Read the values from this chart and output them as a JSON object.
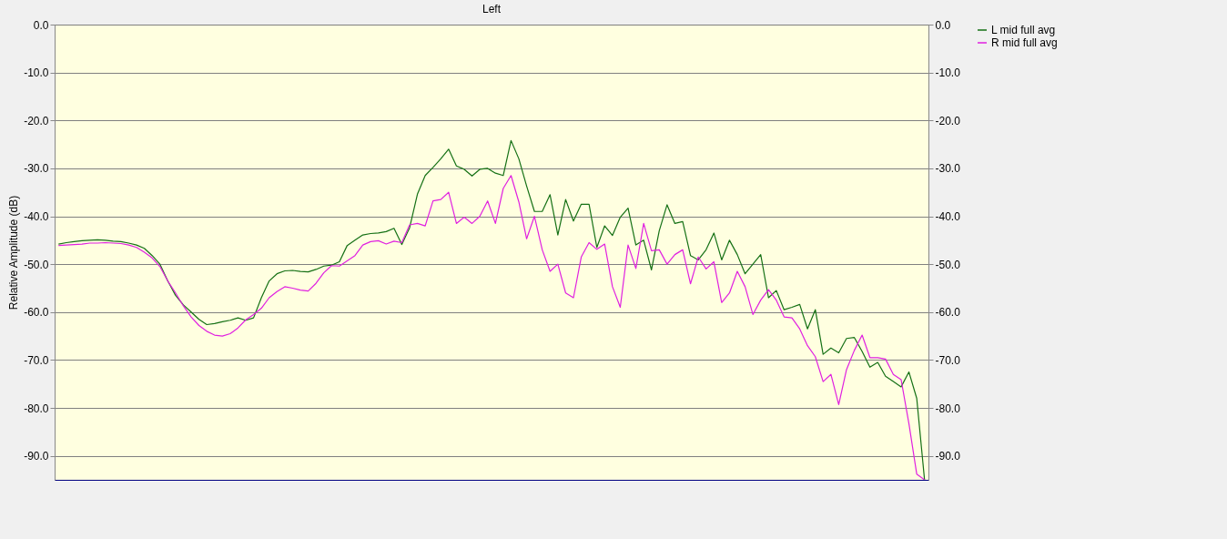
{
  "chart_data": {
    "type": "line",
    "title": "Left",
    "ylabel": "Relative Amplitude (dB)",
    "categories": [
      null,
      null,
      null,
      null,
      null,
      null,
      null,
      null,
      null,
      null,
      null,
      null,
      null,
      null,
      null,
      null,
      null,
      null,
      null,
      null,
      null,
      null,
      null,
      null,
      null,
      null,
      null,
      null,
      null,
      null,
      null,
      null,
      null,
      null,
      null,
      null,
      null,
      null,
      null,
      null,
      null,
      null,
      null,
      null,
      null,
      null,
      null,
      null,
      null,
      null,
      null,
      null,
      null,
      null,
      null,
      null,
      null,
      null,
      null,
      null,
      null,
      null,
      null,
      null,
      null,
      null,
      null,
      null,
      null,
      null,
      null,
      null,
      null,
      null,
      null,
      null,
      null,
      null,
      null,
      null,
      null,
      null,
      null,
      null,
      null,
      null,
      null,
      null,
      null,
      null,
      null,
      null,
      null,
      null,
      null,
      null,
      null,
      null,
      null,
      null,
      null,
      null,
      null,
      null,
      null,
      null,
      null,
      null,
      null,
      null,
      null,
      null
    ],
    "series": [
      {
        "name": "L mid full avg",
        "color": "#157015",
        "values": [
          -45.8,
          -45.5,
          -45.3,
          -45.1,
          -45,
          -44.9,
          -45,
          -45.2,
          -45.3,
          -45.6,
          -46,
          -46.7,
          -48.2,
          -50,
          -53.5,
          -56.5,
          -58.5,
          -60,
          -61.5,
          -62.6,
          -62.4,
          -62,
          -61.7,
          -61.2,
          -61.7,
          -61.2,
          -57,
          -53.5,
          -52,
          -51.4,
          -51.3,
          -51.5,
          -51.6,
          -51.1,
          -50.4,
          -50.2,
          -49.5,
          -46.1,
          -45,
          -43.9,
          -43.6,
          -43.5,
          -43.2,
          -42.5,
          -45.9,
          -42.4,
          -35.4,
          -31.5,
          -29.8,
          -28,
          -26,
          -29.5,
          -30.2,
          -31.6,
          -30.2,
          -30,
          -31,
          -31.5,
          -24.2,
          -28,
          -33.7,
          -39,
          -39,
          -35.5,
          -43.9,
          -36.5,
          -41,
          -37.5,
          -37.5,
          -46.5,
          -42,
          -44,
          -40.2,
          -38.3,
          -46,
          -45,
          -51.2,
          -43,
          -37.6,
          -41.5,
          -41.1,
          -48.2,
          -49.1,
          -47,
          -43.5,
          -49.1,
          -45,
          -48,
          -52,
          -50,
          -48,
          -57,
          -55.5,
          -59.5,
          -59,
          -58.4,
          -63.5,
          -59.5,
          -68.8,
          -67.5,
          -68.5,
          -65.5,
          -65.3,
          -68.2,
          -71.5,
          -70.5,
          -73.4,
          -74.5,
          -75.6,
          -72.5,
          -78,
          -95
        ]
      },
      {
        "name": "R mid full avg",
        "color": "#e020e0",
        "values": [
          -46.1,
          -46,
          -45.9,
          -45.8,
          -45.6,
          -45.6,
          -45.5,
          -45.6,
          -45.7,
          -46,
          -46.5,
          -47.5,
          -48.7,
          -50.5,
          -53.5,
          -56,
          -58.7,
          -61,
          -62.8,
          -64,
          -64.8,
          -65,
          -64.5,
          -63.3,
          -61.6,
          -60.5,
          -59.2,
          -57,
          -55.7,
          -54.7,
          -55,
          -55.4,
          -55.6,
          -54,
          -51.8,
          -50.3,
          -50.4,
          -49.3,
          -48.2,
          -46,
          -45.3,
          -45.1,
          -45.8,
          -45.2,
          -45.5,
          -41.8,
          -41.5,
          -42,
          -36.8,
          -36.5,
          -35,
          -41.5,
          -40.2,
          -41.5,
          -40,
          -36.8,
          -41.5,
          -34.2,
          -31.5,
          -37,
          -44.7,
          -40,
          -47,
          -51.5,
          -50,
          -56,
          -57,
          -48.5,
          -45.5,
          -46.9,
          -45.8,
          -54.7,
          -59,
          -46,
          -50.9,
          -41.5,
          -47.2,
          -47,
          -50,
          -48,
          -47,
          -54.1,
          -48.5,
          -51,
          -49.5,
          -58,
          -56,
          -51.5,
          -54.7,
          -60.5,
          -57.5,
          -55.3,
          -57.5,
          -61,
          -61.2,
          -63.5,
          -67,
          -69.3,
          -74.5,
          -73,
          -79.3,
          -72,
          -68,
          -64.8,
          -69.5,
          -69.5,
          -69.8,
          -73,
          -74.1,
          -83.3,
          -93.8,
          -95
        ]
      }
    ],
    "ylim": [
      -95,
      0
    ],
    "yticks": [
      {
        "value": 0,
        "label": "0.0"
      },
      {
        "value": -10,
        "label": "-10.0"
      },
      {
        "value": -20,
        "label": "-20.0"
      },
      {
        "value": -30,
        "label": "-30.0"
      },
      {
        "value": -40,
        "label": "-40.0"
      },
      {
        "value": -50,
        "label": "-50.0"
      },
      {
        "value": -60,
        "label": "-60.0"
      },
      {
        "value": -70,
        "label": "-70.0"
      },
      {
        "value": -80,
        "label": "-80.0"
      },
      {
        "value": -90,
        "label": "-90.0"
      }
    ],
    "y2lim": [
      -95,
      0
    ],
    "y2ticks": [
      {
        "value": 0,
        "label": "0.0"
      },
      {
        "value": -10,
        "label": "-10.0"
      },
      {
        "value": -20,
        "label": "-20.0"
      },
      {
        "value": -30,
        "label": "-30.0"
      },
      {
        "value": -40,
        "label": "-40.0"
      },
      {
        "value": -50,
        "label": "-50.0"
      },
      {
        "value": -60,
        "label": "-60.0"
      },
      {
        "value": -70,
        "label": "-70.0"
      },
      {
        "value": -80,
        "label": "-80.0"
      },
      {
        "value": -90,
        "label": "-90.0"
      }
    ],
    "grid": "y",
    "legend": "right",
    "line_style": "solid"
  }
}
